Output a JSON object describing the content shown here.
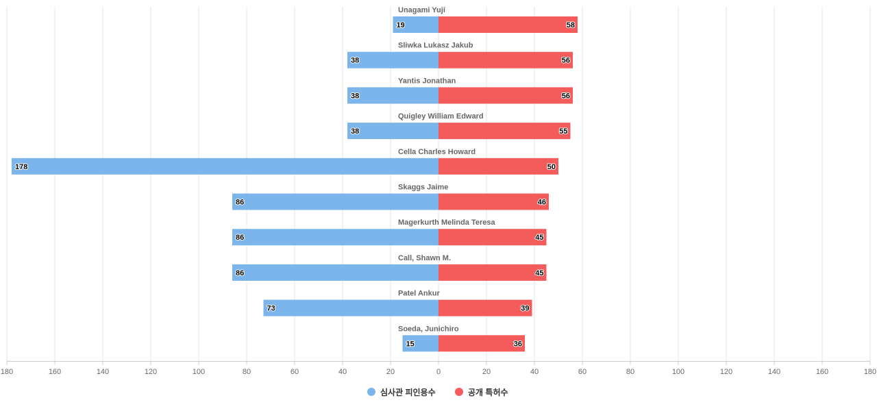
{
  "chart_data": {
    "type": "bar",
    "orientation": "horizontal-diverging",
    "categories": [
      "Unagami Yuji",
      "Sliwka Lukasz Jakub",
      "Yantis Jonathan",
      "Quigley William Edward",
      "Cella Charles Howard",
      "Skaggs Jaime",
      "Magerkurth Melinda Teresa",
      "Call, Shawn M.",
      "Patel Ankur",
      "Soeda, Junichiro"
    ],
    "series": [
      {
        "name": "심사관 피인용수",
        "direction": "left",
        "color": "#7cb5ec",
        "values": [
          19,
          38,
          38,
          38,
          178,
          86,
          86,
          86,
          73,
          15
        ]
      },
      {
        "name": "공개 특허수",
        "direction": "right",
        "color": "#f45b5b",
        "values": [
          58,
          56,
          56,
          55,
          50,
          46,
          45,
          45,
          39,
          36
        ]
      }
    ],
    "xlim": [
      -180,
      180
    ],
    "xticks": [
      180,
      160,
      140,
      120,
      100,
      80,
      60,
      40,
      20,
      0,
      20,
      40,
      60,
      80,
      100,
      120,
      140,
      160,
      180
    ],
    "grid": true,
    "legend_position": "bottom-center",
    "title": "",
    "xlabel": "",
    "ylabel": ""
  }
}
